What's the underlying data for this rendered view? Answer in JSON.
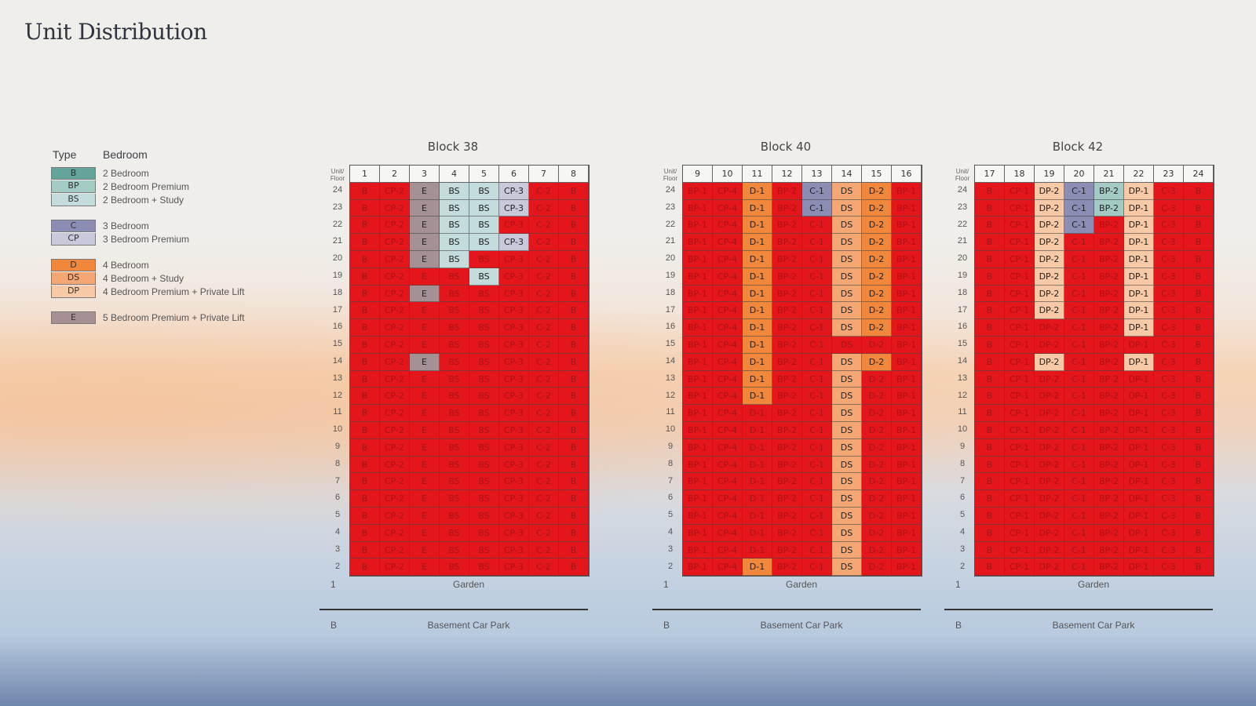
{
  "page": {
    "title": "Unit Distribution"
  },
  "colors": {
    "sold": "#e4161b",
    "sold_text": "#a31518",
    "B": "#64a49a",
    "BP": "#a3cac3",
    "BS": "#c5dcdc",
    "C": "#8c8db4",
    "CP": "#c9c9dc",
    "D": "#f0873a",
    "DS": "#f4a772",
    "DP": "#f7c9a7",
    "E": "#a59094"
  },
  "legend": {
    "type_header": "Type",
    "bedroom_header": "Bedroom",
    "groups": [
      [
        {
          "code": "B",
          "label": "2 Bedroom"
        },
        {
          "code": "BP",
          "label": "2 Bedroom Premium"
        },
        {
          "code": "BS",
          "label": "2 Bedroom + Study"
        }
      ],
      [
        {
          "code": "C",
          "label": "3 Bedroom"
        },
        {
          "code": "CP",
          "label": "3 Bedroom Premium"
        }
      ],
      [
        {
          "code": "D",
          "label": "4 Bedroom"
        },
        {
          "code": "DS",
          "label": "4 Bedroom + Study"
        },
        {
          "code": "DP",
          "label": "4 Bedroom Premium + Private Lift"
        }
      ],
      [
        {
          "code": "E",
          "label": "5 Bedroom Premium + Private Lift"
        }
      ]
    ]
  },
  "floor_header": "Unit/ Floor",
  "floors": [
    24,
    23,
    22,
    21,
    20,
    19,
    18,
    17,
    16,
    15,
    14,
    13,
    12,
    11,
    10,
    9,
    8,
    7,
    6,
    5,
    4,
    3,
    2
  ],
  "ground_floor": {
    "label": "1",
    "name": "Garden"
  },
  "basement": {
    "label": "B",
    "name": "Basement Car Park"
  },
  "blocks": [
    {
      "name": "Block 38",
      "units": [
        "1",
        "2",
        "3",
        "4",
        "5",
        "6",
        "7",
        "8"
      ],
      "types": [
        "B",
        "CP-2",
        "E",
        "BS",
        "BS",
        "CP-3",
        "C-2",
        "B"
      ],
      "available": [
        [
          0,
          0,
          1,
          1,
          1,
          1,
          0,
          0
        ],
        [
          0,
          0,
          1,
          1,
          1,
          1,
          0,
          0
        ],
        [
          0,
          0,
          1,
          1,
          1,
          0,
          0,
          0
        ],
        [
          0,
          0,
          1,
          1,
          1,
          1,
          0,
          0
        ],
        [
          0,
          0,
          1,
          1,
          0,
          0,
          0,
          0
        ],
        [
          0,
          0,
          0,
          0,
          1,
          0,
          0,
          0
        ],
        [
          0,
          0,
          1,
          0,
          0,
          0,
          0,
          0
        ],
        [
          0,
          0,
          0,
          0,
          0,
          0,
          0,
          0
        ],
        [
          0,
          0,
          0,
          0,
          0,
          0,
          0,
          0
        ],
        [
          0,
          0,
          0,
          0,
          0,
          0,
          0,
          0
        ],
        [
          0,
          0,
          1,
          0,
          0,
          0,
          0,
          0
        ],
        [
          0,
          0,
          0,
          0,
          0,
          0,
          0,
          0
        ],
        [
          0,
          0,
          0,
          0,
          0,
          0,
          0,
          0
        ],
        [
          0,
          0,
          0,
          0,
          0,
          0,
          0,
          0
        ],
        [
          0,
          0,
          0,
          0,
          0,
          0,
          0,
          0
        ],
        [
          0,
          0,
          0,
          0,
          0,
          0,
          0,
          0
        ],
        [
          0,
          0,
          0,
          0,
          0,
          0,
          0,
          0
        ],
        [
          0,
          0,
          0,
          0,
          0,
          0,
          0,
          0
        ],
        [
          0,
          0,
          0,
          0,
          0,
          0,
          0,
          0
        ],
        [
          0,
          0,
          0,
          0,
          0,
          0,
          0,
          0
        ],
        [
          0,
          0,
          0,
          0,
          0,
          0,
          0,
          0
        ],
        [
          0,
          0,
          0,
          0,
          0,
          0,
          0,
          0
        ],
        [
          0,
          0,
          0,
          0,
          0,
          0,
          0,
          0
        ]
      ]
    },
    {
      "name": "Block 40",
      "units": [
        "9",
        "10",
        "11",
        "12",
        "13",
        "14",
        "15",
        "16"
      ],
      "types": [
        "BP-1",
        "CP-4",
        "D-1",
        "BP-2",
        "C-1",
        "DS",
        "D-2",
        "BP-1"
      ],
      "available": [
        [
          0,
          0,
          1,
          0,
          1,
          1,
          1,
          0
        ],
        [
          0,
          0,
          1,
          0,
          1,
          1,
          1,
          0
        ],
        [
          0,
          0,
          1,
          0,
          0,
          1,
          1,
          0
        ],
        [
          0,
          0,
          1,
          0,
          0,
          1,
          1,
          0
        ],
        [
          0,
          0,
          1,
          0,
          0,
          1,
          1,
          0
        ],
        [
          0,
          0,
          1,
          0,
          0,
          1,
          1,
          0
        ],
        [
          0,
          0,
          1,
          0,
          0,
          1,
          1,
          0
        ],
        [
          0,
          0,
          1,
          0,
          0,
          1,
          1,
          0
        ],
        [
          0,
          0,
          1,
          0,
          0,
          1,
          1,
          0
        ],
        [
          0,
          0,
          1,
          0,
          0,
          0,
          0,
          0
        ],
        [
          0,
          0,
          1,
          0,
          0,
          1,
          1,
          0
        ],
        [
          0,
          0,
          1,
          0,
          0,
          1,
          0,
          0
        ],
        [
          0,
          0,
          1,
          0,
          0,
          1,
          0,
          0
        ],
        [
          0,
          0,
          0,
          0,
          0,
          1,
          0,
          0
        ],
        [
          0,
          0,
          0,
          0,
          0,
          1,
          0,
          0
        ],
        [
          0,
          0,
          0,
          0,
          0,
          1,
          0,
          0
        ],
        [
          0,
          0,
          0,
          0,
          0,
          1,
          0,
          0
        ],
        [
          0,
          0,
          0,
          0,
          0,
          1,
          0,
          0
        ],
        [
          0,
          0,
          0,
          0,
          0,
          1,
          0,
          0
        ],
        [
          0,
          0,
          0,
          0,
          0,
          1,
          0,
          0
        ],
        [
          0,
          0,
          0,
          0,
          0,
          1,
          0,
          0
        ],
        [
          0,
          0,
          0,
          0,
          0,
          1,
          0,
          0
        ],
        [
          0,
          0,
          1,
          0,
          0,
          1,
          0,
          0
        ]
      ]
    },
    {
      "name": "Block 42",
      "units": [
        "17",
        "18",
        "19",
        "20",
        "21",
        "22",
        "23",
        "24"
      ],
      "types": [
        "B",
        "CP-1",
        "DP-2",
        "C-1",
        "BP-2",
        "DP-1",
        "C-3",
        "B"
      ],
      "available": [
        [
          0,
          0,
          1,
          1,
          1,
          1,
          0,
          0
        ],
        [
          0,
          0,
          1,
          1,
          1,
          1,
          0,
          0
        ],
        [
          0,
          0,
          1,
          1,
          0,
          1,
          0,
          0
        ],
        [
          0,
          0,
          1,
          0,
          0,
          1,
          0,
          0
        ],
        [
          0,
          0,
          1,
          0,
          0,
          1,
          0,
          0
        ],
        [
          0,
          0,
          1,
          0,
          0,
          1,
          0,
          0
        ],
        [
          0,
          0,
          1,
          0,
          0,
          1,
          0,
          0
        ],
        [
          0,
          0,
          1,
          0,
          0,
          1,
          0,
          0
        ],
        [
          0,
          0,
          0,
          0,
          0,
          1,
          0,
          0
        ],
        [
          0,
          0,
          0,
          0,
          0,
          0,
          0,
          0
        ],
        [
          0,
          0,
          1,
          0,
          0,
          1,
          0,
          0
        ],
        [
          0,
          0,
          0,
          0,
          0,
          0,
          0,
          0
        ],
        [
          0,
          0,
          0,
          0,
          0,
          0,
          0,
          0
        ],
        [
          0,
          0,
          0,
          0,
          0,
          0,
          0,
          0
        ],
        [
          0,
          0,
          0,
          0,
          0,
          0,
          0,
          0
        ],
        [
          0,
          0,
          0,
          0,
          0,
          0,
          0,
          0
        ],
        [
          0,
          0,
          0,
          0,
          0,
          0,
          0,
          0
        ],
        [
          0,
          0,
          0,
          0,
          0,
          0,
          0,
          0
        ],
        [
          0,
          0,
          0,
          0,
          0,
          0,
          0,
          0
        ],
        [
          0,
          0,
          0,
          0,
          0,
          0,
          0,
          0
        ],
        [
          0,
          0,
          0,
          0,
          0,
          0,
          0,
          0
        ],
        [
          0,
          0,
          0,
          0,
          0,
          0,
          0,
          0
        ],
        [
          0,
          0,
          0,
          0,
          0,
          0,
          0,
          0
        ]
      ]
    }
  ]
}
